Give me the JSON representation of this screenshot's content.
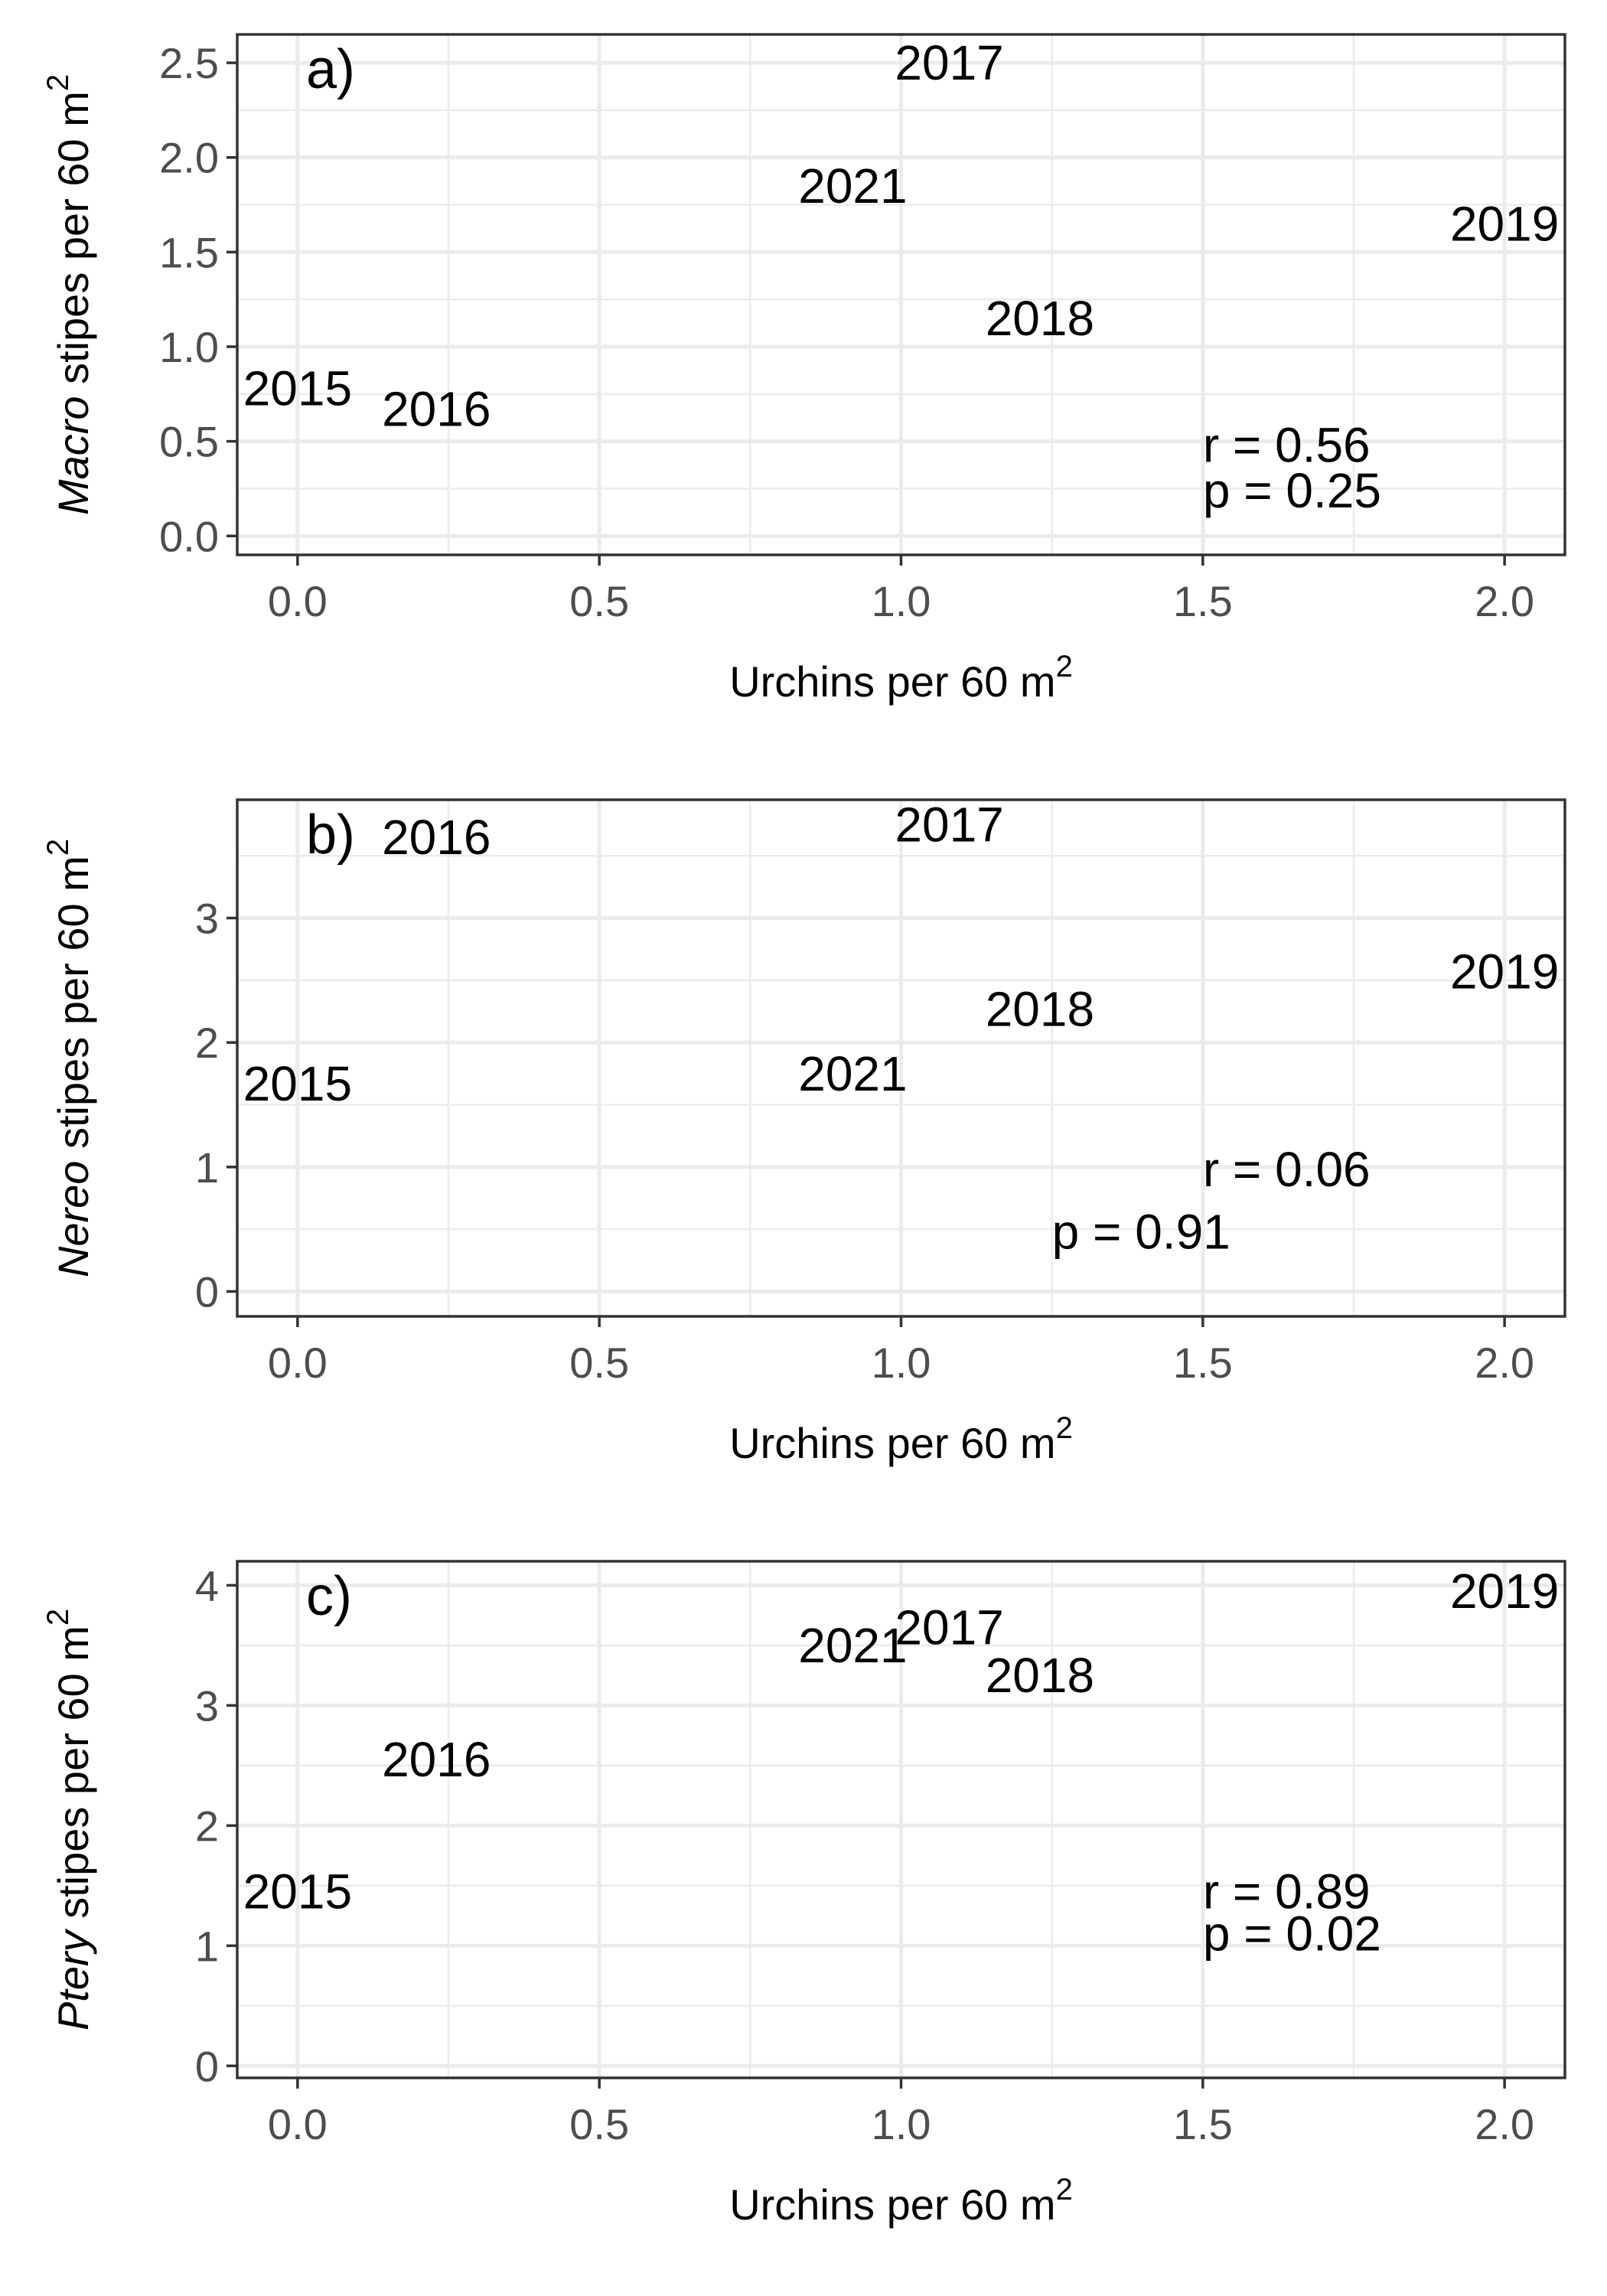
{
  "chart_data": [
    {
      "type": "scatter",
      "panel": "a)",
      "xlabel": "Urchins per 60 m",
      "xlabel_sup": "2",
      "ylabel_italic": "Macro",
      "ylabel_rest": " stipes per 60 m",
      "ylabel_sup": "2",
      "xlim": [
        -0.1,
        2.1
      ],
      "ylim": [
        -0.1,
        2.65
      ],
      "xticks": [
        0.0,
        0.5,
        1.0,
        1.5,
        2.0
      ],
      "xtick_labels": [
        "0.0",
        "0.5",
        "1.0",
        "1.5",
        "2.0"
      ],
      "yticks": [
        0.0,
        0.5,
        1.0,
        1.5,
        2.0,
        2.5
      ],
      "ytick_labels": [
        "0.0",
        "0.5",
        "1.0",
        "1.5",
        "2.0",
        "2.5"
      ],
      "grid": true,
      "points": [
        {
          "label": "2015",
          "x": 0.0,
          "y": 0.78
        },
        {
          "label": "2016",
          "x": 0.23,
          "y": 0.67
        },
        {
          "label": "2017",
          "x": 1.08,
          "y": 2.5
        },
        {
          "label": "2018",
          "x": 1.23,
          "y": 1.15
        },
        {
          "label": "2019",
          "x": 2.0,
          "y": 1.65
        },
        {
          "label": "2021",
          "x": 0.92,
          "y": 1.85
        }
      ],
      "annotations": [
        {
          "text": "r = 0.56",
          "x": 1.5,
          "y": 0.48
        },
        {
          "text": "p = 0.25",
          "x": 1.5,
          "y": 0.24
        }
      ]
    },
    {
      "type": "scatter",
      "panel": "b)",
      "xlabel": "Urchins per 60 m",
      "xlabel_sup": "2",
      "ylabel_italic": "Nereo",
      "ylabel_rest": " stipes per 60 m",
      "ylabel_sup": "2",
      "xlim": [
        -0.1,
        2.1
      ],
      "ylim": [
        -0.2,
        3.95
      ],
      "xticks": [
        0.0,
        0.5,
        1.0,
        1.5,
        2.0
      ],
      "xtick_labels": [
        "0.0",
        "0.5",
        "1.0",
        "1.5",
        "2.0"
      ],
      "yticks": [
        0,
        1,
        2,
        3
      ],
      "ytick_labels": [
        "0",
        "1",
        "2",
        "3"
      ],
      "grid": true,
      "points": [
        {
          "label": "2015",
          "x": 0.0,
          "y": 1.67
        },
        {
          "label": "2016",
          "x": 0.23,
          "y": 3.65
        },
        {
          "label": "2017",
          "x": 1.08,
          "y": 3.75
        },
        {
          "label": "2018",
          "x": 1.23,
          "y": 2.27
        },
        {
          "label": "2019",
          "x": 2.0,
          "y": 2.57
        },
        {
          "label": "2021",
          "x": 0.92,
          "y": 1.75
        }
      ],
      "annotations": [
        {
          "text": "r = 0.06",
          "x": 1.5,
          "y": 0.98
        },
        {
          "text": "p = 0.91",
          "x": 1.25,
          "y": 0.48
        }
      ]
    },
    {
      "type": "scatter",
      "panel": "c)",
      "xlabel": "Urchins per 60 m",
      "xlabel_sup": "2",
      "ylabel_italic": "Ptery",
      "ylabel_rest": " stipes per 60 m",
      "ylabel_sup": "2",
      "xlim": [
        -0.1,
        2.1
      ],
      "ylim": [
        -0.1,
        4.2
      ],
      "xticks": [
        0.0,
        0.5,
        1.0,
        1.5,
        2.0
      ],
      "xtick_labels": [
        "0.0",
        "0.5",
        "1.0",
        "1.5",
        "2.0"
      ],
      "yticks": [
        0,
        1,
        2,
        3,
        4
      ],
      "ytick_labels": [
        "0",
        "1",
        "2",
        "3",
        "4"
      ],
      "grid": true,
      "points": [
        {
          "label": "2015",
          "x": 0.0,
          "y": 1.45
        },
        {
          "label": "2016",
          "x": 0.23,
          "y": 2.55
        },
        {
          "label": "2017",
          "x": 1.08,
          "y": 3.65
        },
        {
          "label": "2018",
          "x": 1.23,
          "y": 3.25
        },
        {
          "label": "2019",
          "x": 2.0,
          "y": 3.95
        },
        {
          "label": "2021",
          "x": 0.92,
          "y": 3.5
        }
      ],
      "annotations": [
        {
          "text": "r = 0.89",
          "x": 1.5,
          "y": 1.45
        },
        {
          "text": "p = 0.02",
          "x": 1.5,
          "y": 1.1
        }
      ]
    }
  ]
}
